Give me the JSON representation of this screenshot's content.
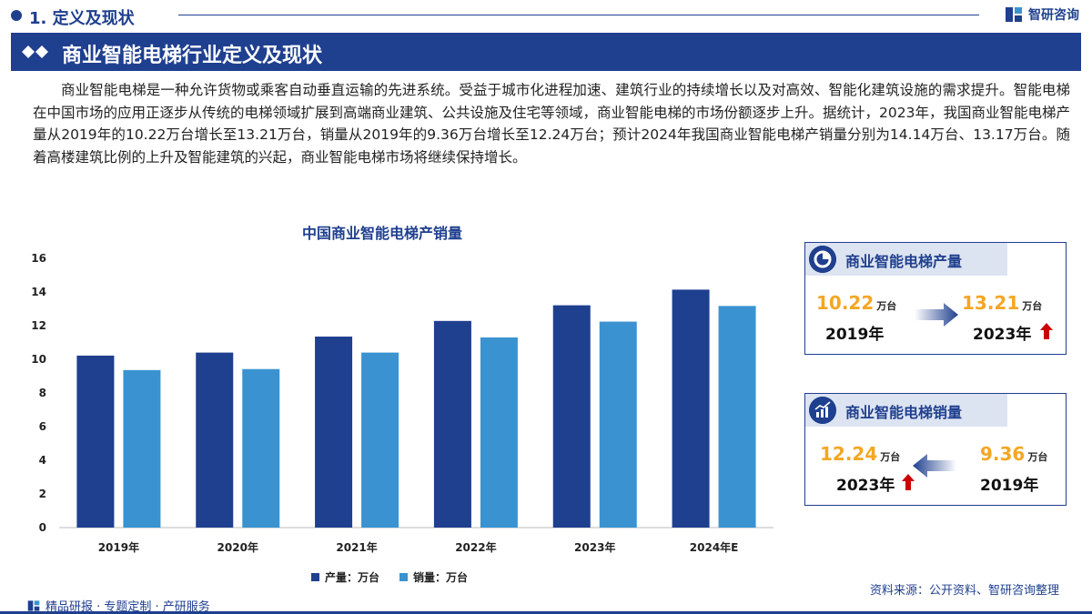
{
  "header": {
    "section_title": "1. 定义及现状",
    "brand_name": "智研咨询",
    "banner_title": "商业智能电梯行业定义及现状"
  },
  "intro": "商业智能电梯是一种允许货物或乘客自动垂直运输的先进系统。受益于城市化进程加速、建筑行业的持续增长以及对高效、智能化建筑设施的需求提升。智能电梯在中国市场的应用正逐步从传统的电梯领域扩展到高端商业建筑、公共设施及住宅等领域，商业智能电梯的市场份额逐步上升。据统计，2023年，我国商业智能电梯产量从2019年的10.22万台增长至13.21万台，销量从2019年的9.36万台增长至12.24万台；预计2024年我国商业智能电梯产销量分别为14.14万台、13.17万台。随着高楼建筑比例的上升及智能建筑的兴起，商业智能电梯市场将继续保持增长。",
  "chart_data": {
    "type": "bar",
    "title": "中国商业智能电梯产销量",
    "categories": [
      "2019年",
      "2020年",
      "2021年",
      "2022年",
      "2023年",
      "2024年E"
    ],
    "series": [
      {
        "name": "产量：万台",
        "color": "#1f3f8f",
        "values": [
          10.22,
          10.4,
          11.35,
          12.28,
          13.21,
          14.14
        ]
      },
      {
        "name": "销量：万台",
        "color": "#3a93d0",
        "values": [
          9.36,
          9.42,
          10.4,
          11.3,
          12.24,
          13.17
        ]
      }
    ],
    "ylim": [
      0,
      16
    ],
    "yticks": [
      "0",
      "2",
      "4",
      "6",
      "8",
      "10",
      "12",
      "14",
      "16"
    ],
    "grid": false,
    "legend": "bottom"
  },
  "panels": {
    "production": {
      "title": "商业智能电梯产量",
      "left_value": "10.22",
      "left_unit": "万台",
      "left_year": "2019年",
      "right_value": "13.21",
      "right_unit": "万台",
      "right_year": "2023年"
    },
    "sales": {
      "title": "商业智能电梯销量",
      "left_value": "12.24",
      "left_unit": "万台",
      "left_year": "2023年",
      "right_value": "9.36",
      "right_unit": "万台",
      "right_year": "2019年"
    }
  },
  "footer": {
    "slogan": "精品研报 · 专题定制 · 产研服务",
    "source": "资料来源：公开资料、智研咨询整理"
  },
  "colors": {
    "primary": "#1f3f8f",
    "accent": "#f5a623",
    "up_arrow": "#cc0000"
  }
}
